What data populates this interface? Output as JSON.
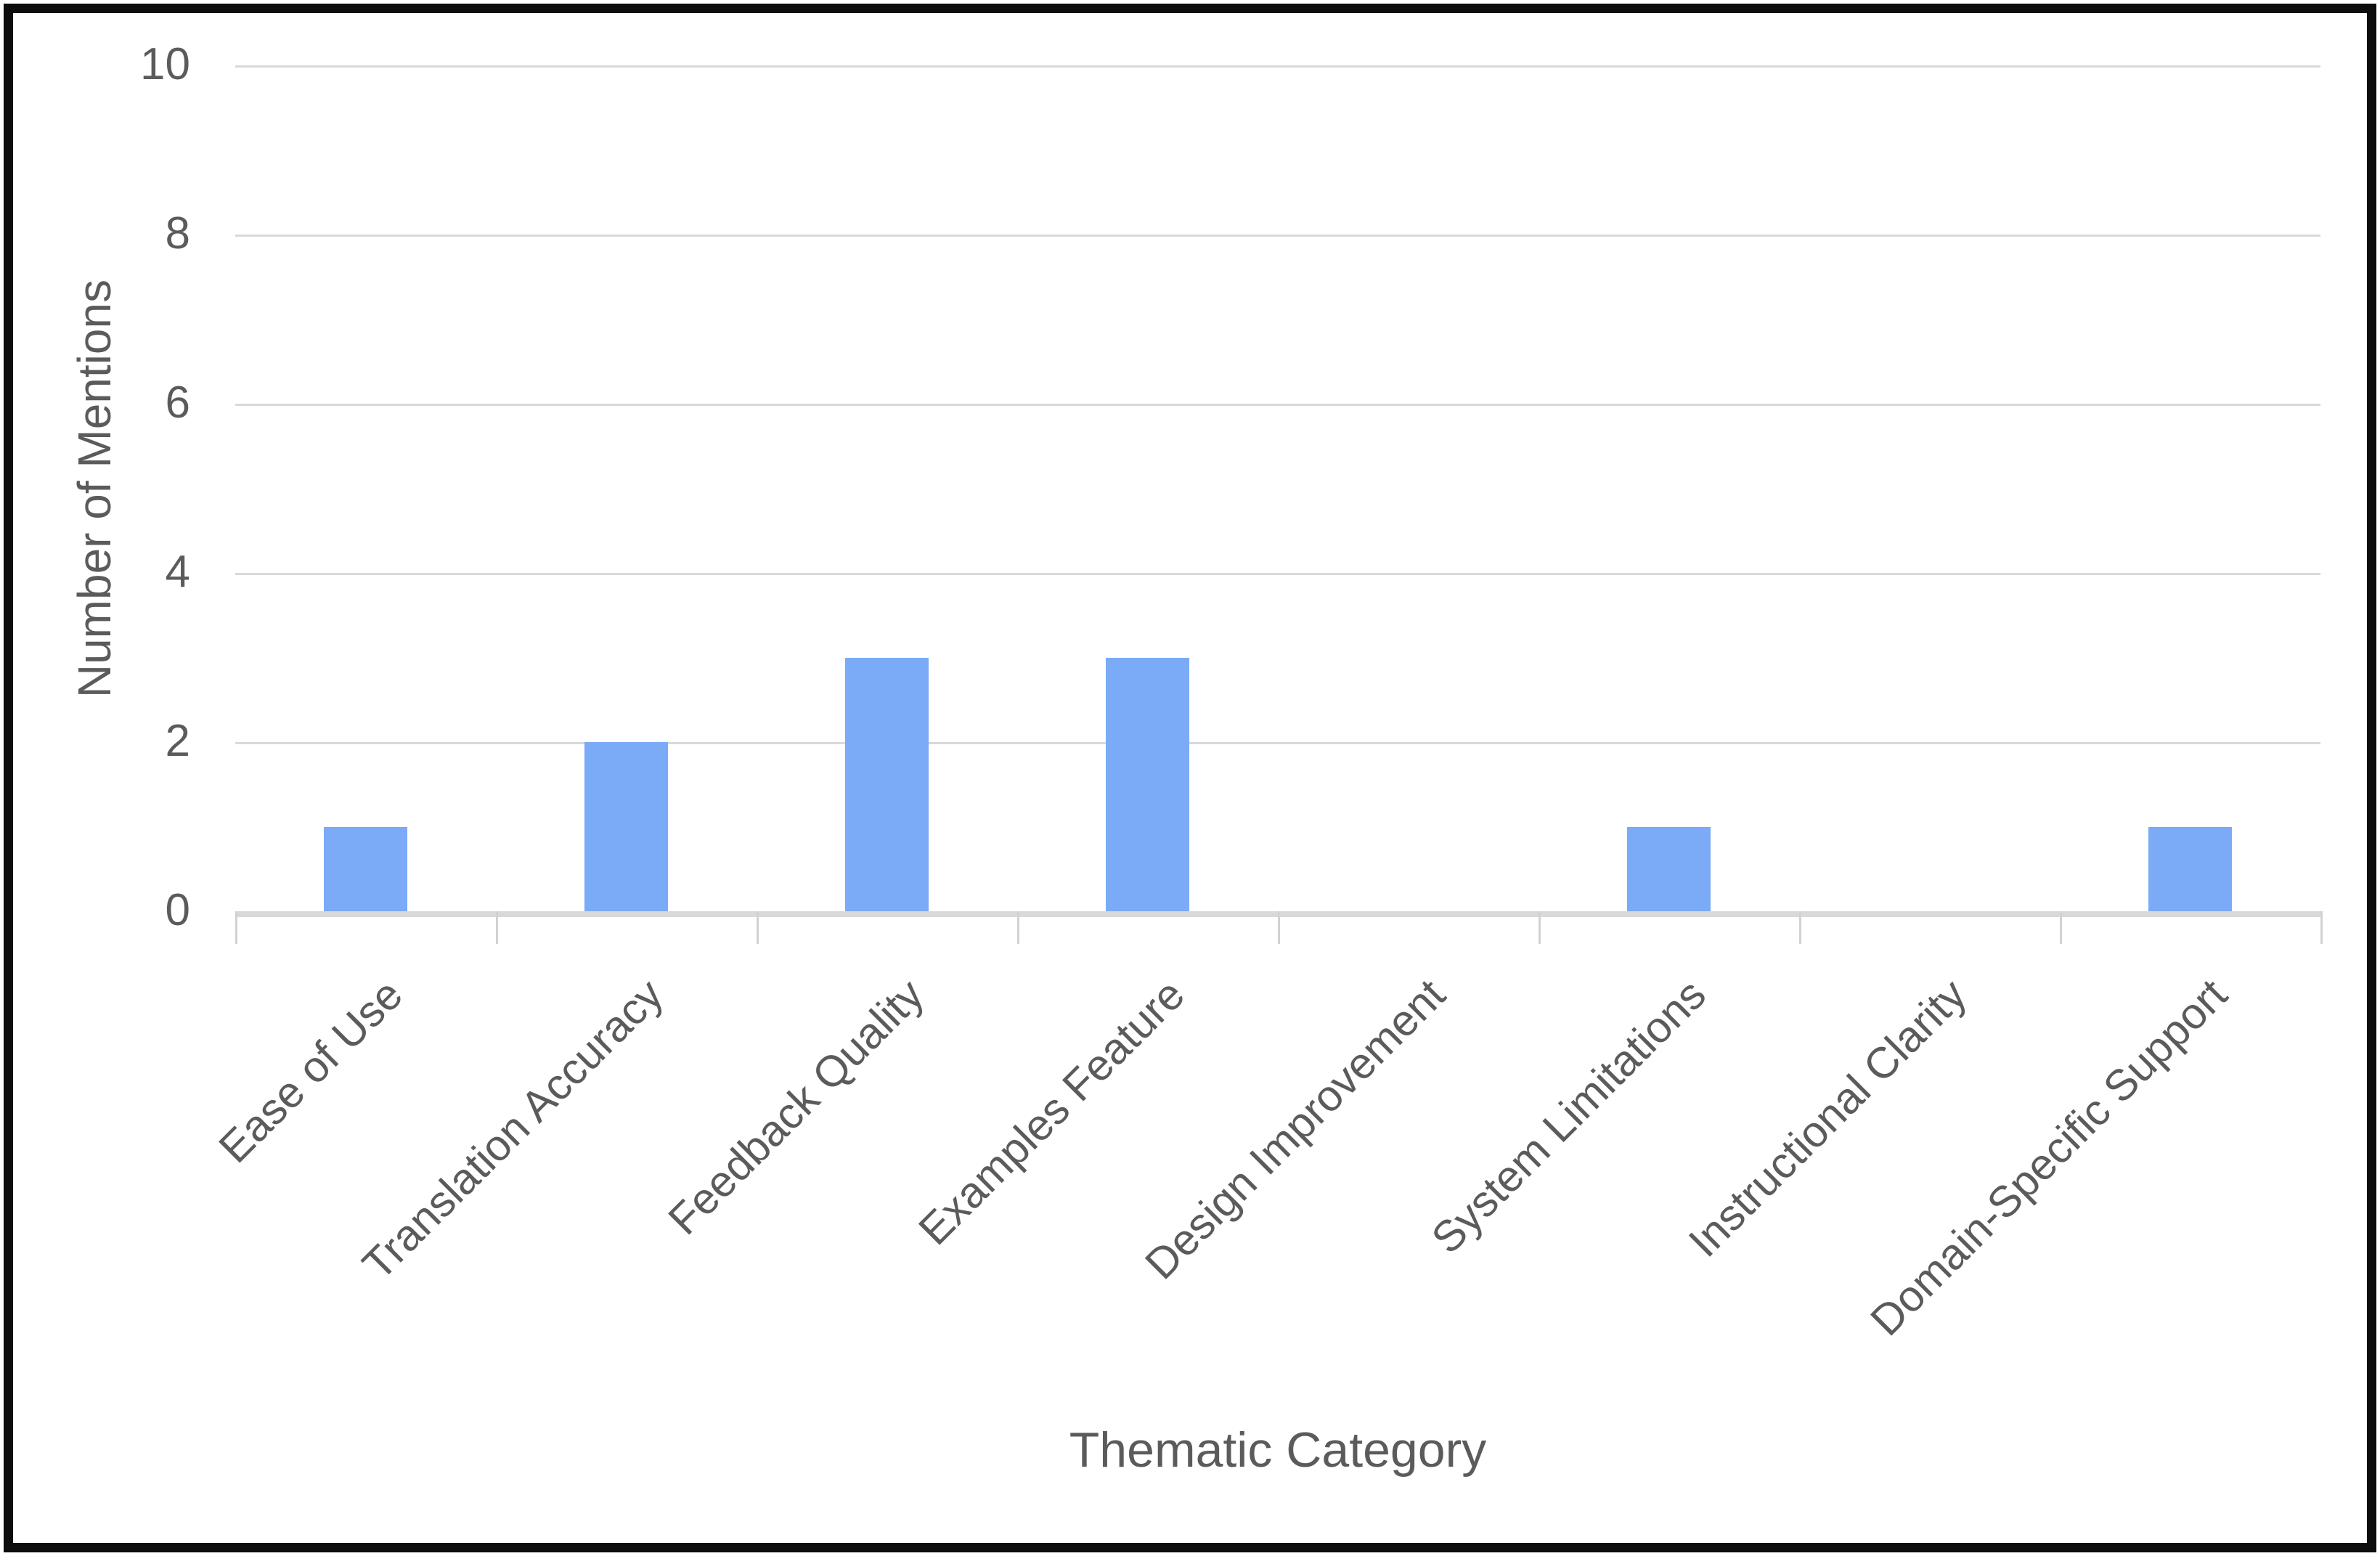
{
  "chart_data": {
    "type": "bar",
    "title": "",
    "categories": [
      "Ease of Use",
      "Translation Accuracy",
      "Feedback Quality",
      "Examples Feature",
      "Design Improvement",
      "System Limitations",
      "Instructional Clarity",
      "Domain-Specific Support"
    ],
    "values": [
      1,
      2,
      3,
      3,
      0,
      1,
      0,
      1
    ],
    "xlabel": "Thematic Category",
    "ylabel": "Number of Mentions",
    "ylim": [
      0,
      10
    ],
    "yticks": [
      0,
      2,
      4,
      6,
      8,
      10
    ],
    "grid": true,
    "legend_position": "none",
    "bar_color": "#7baaf7",
    "gridline_color": "#d9d9d9",
    "axis_line_color": "#d9d9d9",
    "tick_color": "#d2d2d2",
    "text_color": "#5b5b5b",
    "border_color": "#0d0d0d",
    "background_color": "#ffffff"
  }
}
